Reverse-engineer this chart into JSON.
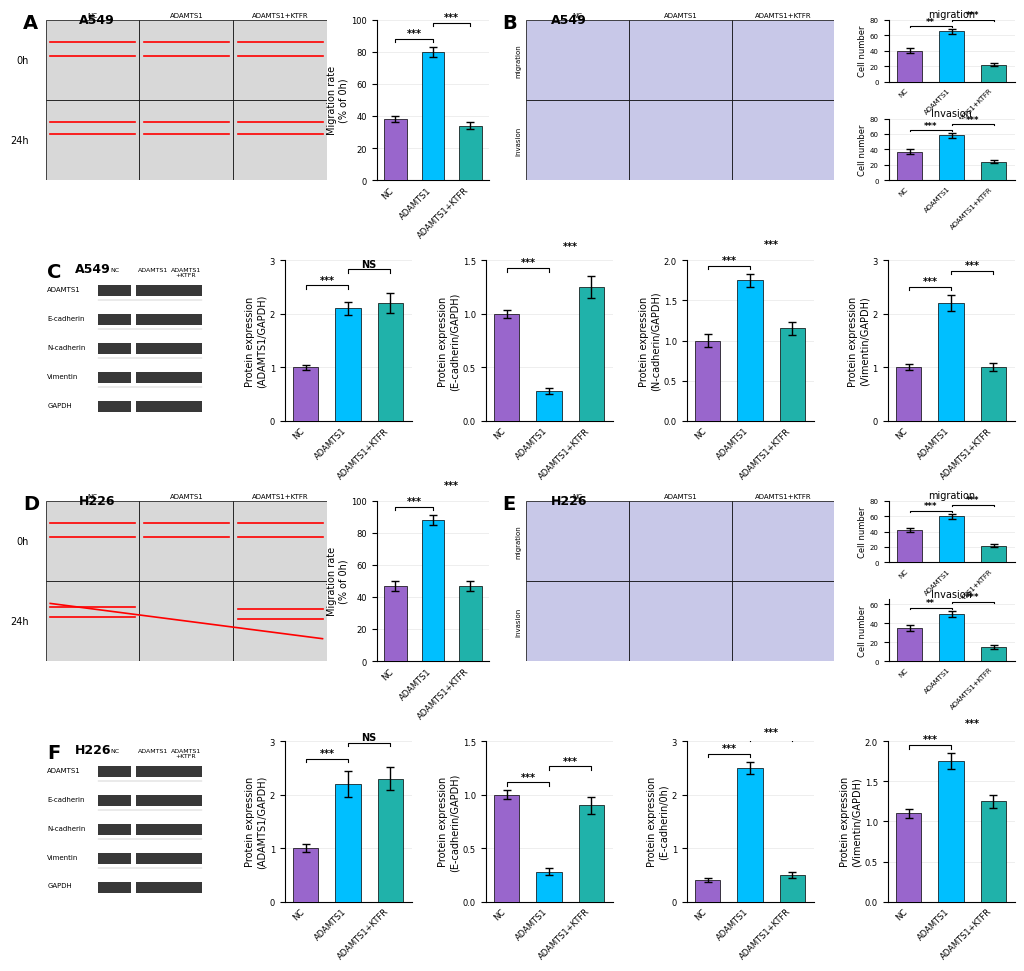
{
  "panel_A_bar": {
    "ylabel": "Migration rate\n(% of 0h)",
    "ylim": [
      0,
      100
    ],
    "yticks": [
      0,
      20,
      40,
      60,
      80,
      100
    ],
    "categories": [
      "NC",
      "ADAMTS1",
      "ADAMTS1+KTFR"
    ],
    "values": [
      38,
      80,
      34
    ],
    "errors": [
      2,
      3,
      2
    ],
    "sig_pairs": [
      [
        [
          0,
          1
        ],
        "***"
      ],
      [
        [
          1,
          2
        ],
        "***"
      ]
    ]
  },
  "panel_B_migration": {
    "title": "migration",
    "ylabel": "Cell number",
    "ylim": [
      0,
      80
    ],
    "yticks": [
      0,
      20,
      40,
      60,
      80
    ],
    "categories": [
      "NC",
      "ADAMTS1",
      "ADAMTS1+KTFR"
    ],
    "values": [
      40,
      65,
      22
    ],
    "errors": [
      3,
      3,
      2
    ],
    "sig_pairs": [
      [
        [
          0,
          1
        ],
        "**"
      ],
      [
        [
          1,
          2
        ],
        "***"
      ]
    ]
  },
  "panel_B_invasion": {
    "title": "Invasion",
    "ylabel": "Cell number",
    "ylim": [
      0,
      80
    ],
    "yticks": [
      0,
      20,
      40,
      60,
      80
    ],
    "categories": [
      "NC",
      "ADAMTS1",
      "ADAMTS1+KTFR"
    ],
    "values": [
      37,
      58,
      24
    ],
    "errors": [
      3,
      3,
      2
    ],
    "sig_pairs": [
      [
        [
          0,
          1
        ],
        "***"
      ],
      [
        [
          1,
          2
        ],
        "***"
      ]
    ]
  },
  "panel_C_adamts1": {
    "ylabel": "Protein expression\n(ADAMTS1/GAPDH)",
    "ylim": [
      0,
      3
    ],
    "yticks": [
      0,
      1,
      2,
      3
    ],
    "categories": [
      "NC",
      "ADAMTS1",
      "ADAMTS1+KTFR"
    ],
    "values": [
      1.0,
      2.1,
      2.2
    ],
    "errors": [
      0.05,
      0.12,
      0.18
    ],
    "sig_pairs": [
      [
        [
          0,
          1
        ],
        "***"
      ],
      [
        [
          1,
          2
        ],
        "NS"
      ]
    ]
  },
  "panel_C_ecadherin": {
    "ylabel": "Protein expression\n(E-cadherin/GAPDH)",
    "ylim": [
      0.0,
      1.5
    ],
    "yticks": [
      0.0,
      0.5,
      1.0,
      1.5
    ],
    "categories": [
      "NC",
      "ADAMTS1",
      "ADAMTS1+KTFR"
    ],
    "values": [
      1.0,
      0.28,
      1.25
    ],
    "errors": [
      0.04,
      0.03,
      0.1
    ],
    "sig_pairs": [
      [
        [
          0,
          1
        ],
        "***"
      ],
      [
        [
          1,
          2
        ],
        "***"
      ]
    ]
  },
  "panel_C_ncadherin": {
    "ylabel": "Protein expression\n(N-cadherin/GAPDH)",
    "ylim": [
      0.0,
      2.0
    ],
    "yticks": [
      0.0,
      0.5,
      1.0,
      1.5,
      2.0
    ],
    "categories": [
      "NC",
      "ADAMTS1",
      "ADAMTS1+KTFR"
    ],
    "values": [
      1.0,
      1.75,
      1.15
    ],
    "errors": [
      0.08,
      0.08,
      0.08
    ],
    "sig_pairs": [
      [
        [
          0,
          1
        ],
        "***"
      ],
      [
        [
          1,
          2
        ],
        "***"
      ]
    ]
  },
  "panel_C_vimentin": {
    "ylabel": "Protein expression\n(Vimentin/GAPDH)",
    "ylim": [
      0,
      3
    ],
    "yticks": [
      0,
      1,
      2,
      3
    ],
    "categories": [
      "NC",
      "ADAMTS1",
      "ADAMTS1+KTFR"
    ],
    "values": [
      1.0,
      2.2,
      1.0
    ],
    "errors": [
      0.06,
      0.15,
      0.08
    ],
    "sig_pairs": [
      [
        [
          0,
          1
        ],
        "***"
      ],
      [
        [
          1,
          2
        ],
        "***"
      ]
    ]
  },
  "panel_D_bar": {
    "ylabel": "Migration rate\n(% of 0h)",
    "ylim": [
      0,
      100
    ],
    "yticks": [
      0,
      20,
      40,
      60,
      80,
      100
    ],
    "categories": [
      "NC",
      "ADAMTS1",
      "ADAMTS1+KTFR"
    ],
    "values": [
      47,
      88,
      47
    ],
    "errors": [
      3,
      3,
      3
    ],
    "sig_pairs": [
      [
        [
          0,
          1
        ],
        "***"
      ],
      [
        [
          1,
          2
        ],
        "***"
      ]
    ]
  },
  "panel_E_migration": {
    "title": "migration",
    "ylabel": "Cell number",
    "ylim": [
      0,
      80
    ],
    "yticks": [
      0,
      20,
      40,
      60,
      80
    ],
    "categories": [
      "NC",
      "ADAMTS1",
      "ADAMTS1+KTFR"
    ],
    "values": [
      42,
      60,
      22
    ],
    "errors": [
      3,
      3,
      2
    ],
    "sig_pairs": [
      [
        [
          0,
          1
        ],
        "***"
      ],
      [
        [
          1,
          2
        ],
        "***"
      ]
    ]
  },
  "panel_E_invasion": {
    "title": "Invasion",
    "ylabel": "Cell number",
    "ylim": [
      0,
      65
    ],
    "yticks": [
      0,
      20,
      40,
      60
    ],
    "categories": [
      "NC",
      "ADAMTS1",
      "ADAMTS1+KTFR"
    ],
    "values": [
      35,
      50,
      15
    ],
    "errors": [
      3,
      3,
      2
    ],
    "sig_pairs": [
      [
        [
          0,
          1
        ],
        "**"
      ],
      [
        [
          1,
          2
        ],
        "***"
      ]
    ]
  },
  "panel_F_adamts1": {
    "ylabel": "Protein expression\n(ADAMTS1/GAPDH)",
    "ylim": [
      0,
      3
    ],
    "yticks": [
      0,
      1,
      2,
      3
    ],
    "categories": [
      "NC",
      "ADAMTS1",
      "ADAMTS1+KTFR"
    ],
    "values": [
      1.0,
      2.2,
      2.3
    ],
    "errors": [
      0.08,
      0.25,
      0.22
    ],
    "sig_pairs": [
      [
        [
          0,
          1
        ],
        "***"
      ],
      [
        [
          1,
          2
        ],
        "NS"
      ]
    ]
  },
  "panel_F_ecadherin": {
    "ylabel": "Protein expression\n(E-cadherin/GAPDH)",
    "ylim": [
      0.0,
      1.5
    ],
    "yticks": [
      0.0,
      0.5,
      1.0,
      1.5
    ],
    "categories": [
      "NC",
      "ADAMTS1",
      "ADAMTS1+KTFR"
    ],
    "values": [
      1.0,
      0.28,
      0.9
    ],
    "errors": [
      0.04,
      0.03,
      0.08
    ],
    "sig_pairs": [
      [
        [
          0,
          1
        ],
        "***"
      ],
      [
        [
          1,
          2
        ],
        "***"
      ]
    ]
  },
  "panel_F_ncadherin": {
    "ylabel": "Protein expression\n(E-cadherin/0h)",
    "ylim": [
      0,
      3
    ],
    "yticks": [
      0,
      1,
      2,
      3
    ],
    "categories": [
      "NC",
      "ADAMTS1",
      "ADAMTS1+KTFR"
    ],
    "values": [
      0.4,
      2.5,
      0.5
    ],
    "errors": [
      0.04,
      0.12,
      0.05
    ],
    "sig_pairs": [
      [
        [
          0,
          1
        ],
        "***"
      ],
      [
        [
          1,
          2
        ],
        "***"
      ]
    ]
  },
  "panel_F_vimentin": {
    "ylabel": "Protein expression\n(Vimentin/GAPDH)",
    "ylim": [
      0.0,
      2.0
    ],
    "yticks": [
      0.0,
      0.5,
      1.0,
      1.5,
      2.0
    ],
    "categories": [
      "NC",
      "ADAMTS1",
      "ADAMTS1+KTFR"
    ],
    "values": [
      1.1,
      1.75,
      1.25
    ],
    "errors": [
      0.06,
      0.1,
      0.08
    ],
    "sig_pairs": [
      [
        [
          0,
          1
        ],
        "***"
      ],
      [
        [
          1,
          2
        ],
        "***"
      ]
    ]
  },
  "bar_colors": [
    "#9966CC",
    "#00BFFF",
    "#20B2AA"
  ],
  "label_fontsize": 7,
  "tick_fontsize": 6,
  "title_fontsize": 8,
  "wb_labels": [
    "ADAMTS1",
    "E-cadherin",
    "N-cadherin",
    "Vimentin",
    "GAPDH"
  ]
}
